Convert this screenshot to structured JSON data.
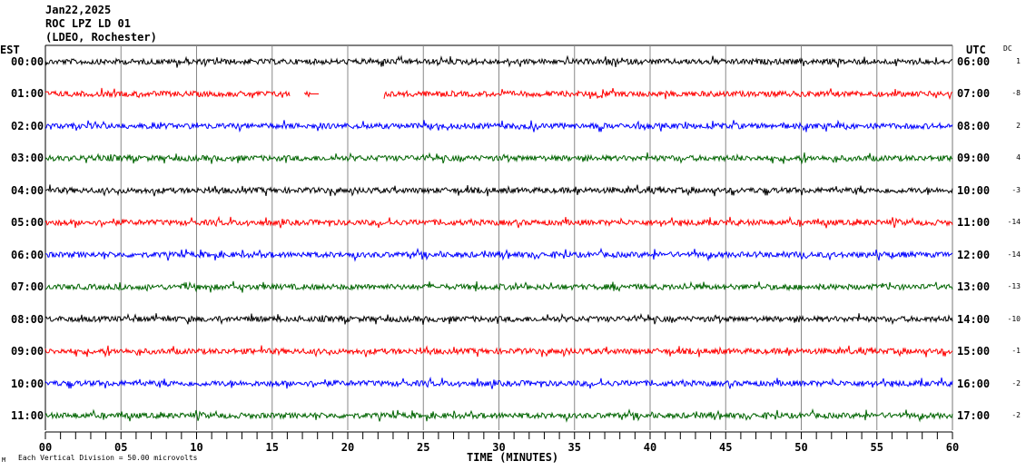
{
  "header": {
    "date": "Jan22,2025",
    "station": "ROC LPZ LD 01",
    "network": "(LDEO, Rochester)"
  },
  "chart_data": {
    "type": "line",
    "title": "ROC LPZ LD 01 helicorder Jan22,2025",
    "left_axis_label": "EST",
    "right_axis_label": "UTC",
    "dc_label": "DC",
    "xlabel": "TIME (MINUTES)",
    "xlim": [
      0,
      60
    ],
    "x_ticks": [
      "00",
      "05",
      "10",
      "15",
      "20",
      "25",
      "30",
      "35",
      "40",
      "45",
      "50",
      "55",
      "60"
    ],
    "grid": true,
    "scale_note": "Each Vertical Division =    50.00 microvolts",
    "corner_mark": "M",
    "rows": [
      {
        "est": "00:00",
        "utc": "06:00",
        "dc": "1",
        "color": "#000000"
      },
      {
        "est": "01:00",
        "utc": "07:00",
        "dc": "-8",
        "color": "#ff0000",
        "gaps": [
          [
            16.2,
            17.1
          ],
          [
            18.1,
            22.4
          ]
        ],
        "flat": [
          [
            17.5,
            18.1
          ]
        ]
      },
      {
        "est": "02:00",
        "utc": "08:00",
        "dc": "2",
        "color": "#0000ff"
      },
      {
        "est": "03:00",
        "utc": "09:00",
        "dc": "4",
        "color": "#006400"
      },
      {
        "est": "04:00",
        "utc": "10:00",
        "dc": "-3",
        "color": "#000000"
      },
      {
        "est": "05:00",
        "utc": "11:00",
        "dc": "-14",
        "color": "#ff0000"
      },
      {
        "est": "06:00",
        "utc": "12:00",
        "dc": "-14",
        "color": "#0000ff"
      },
      {
        "est": "07:00",
        "utc": "13:00",
        "dc": "-13",
        "color": "#006400"
      },
      {
        "est": "08:00",
        "utc": "14:00",
        "dc": "-10",
        "color": "#000000"
      },
      {
        "est": "09:00",
        "utc": "15:00",
        "dc": "-1",
        "color": "#ff0000"
      },
      {
        "est": "10:00",
        "utc": "16:00",
        "dc": "-2",
        "color": "#0000ff"
      },
      {
        "est": "11:00",
        "utc": "17:00",
        "dc": "-2",
        "color": "#006400"
      }
    ]
  }
}
